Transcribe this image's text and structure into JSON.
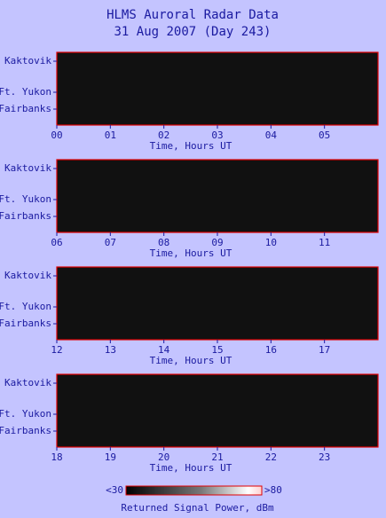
{
  "header": {
    "title": "HLMS Auroral Radar Data",
    "subtitle": "31 Aug 2007 (Day 243)"
  },
  "chart_data": [
    {
      "type": "heatmap",
      "xlabel": "Time, Hours UT",
      "xlim": [
        0,
        6
      ],
      "xticks": [
        {
          "value": 0,
          "label": "00"
        },
        {
          "value": 1,
          "label": "01"
        },
        {
          "value": 2,
          "label": "02"
        },
        {
          "value": 3,
          "label": "03"
        },
        {
          "value": 4,
          "label": "04"
        },
        {
          "value": 5,
          "label": "05"
        }
      ],
      "y_labels": [
        "Kaktovik",
        "Ft. Yukon",
        "Fairbanks"
      ]
    },
    {
      "type": "heatmap",
      "xlabel": "Time, Hours UT",
      "xlim": [
        6,
        12
      ],
      "xticks": [
        {
          "value": 6,
          "label": "06"
        },
        {
          "value": 7,
          "label": "07"
        },
        {
          "value": 8,
          "label": "08"
        },
        {
          "value": 9,
          "label": "09"
        },
        10,
        11
      ],
      "y_labels": [
        "Kaktovik",
        "Ft. Yukon",
        "Fairbanks"
      ]
    },
    {
      "type": "heatmap",
      "xlabel": "Time, Hours UT",
      "xlim": [
        12,
        18
      ],
      "xticks": [
        12,
        13,
        14,
        15,
        16,
        17
      ],
      "y_labels": [
        "Kaktovik",
        "Ft. Yukon",
        "Fairbanks"
      ]
    },
    {
      "type": "heatmap",
      "xlabel": "Time, Hours UT",
      "xlim": [
        18,
        24
      ],
      "xticks": [
        18,
        19,
        20,
        21,
        22,
        23
      ],
      "y_labels": [
        "Kaktovik",
        "Ft. Yukon",
        "Fairbanks"
      ]
    }
  ],
  "colorbar": {
    "label": "Returned Signal Power, dBm",
    "clim": [
      30,
      80
    ],
    "ticks": [
      {
        "value": 30,
        "label": "<30"
      },
      {
        "value": 80,
        "label": ">80"
      }
    ]
  }
}
